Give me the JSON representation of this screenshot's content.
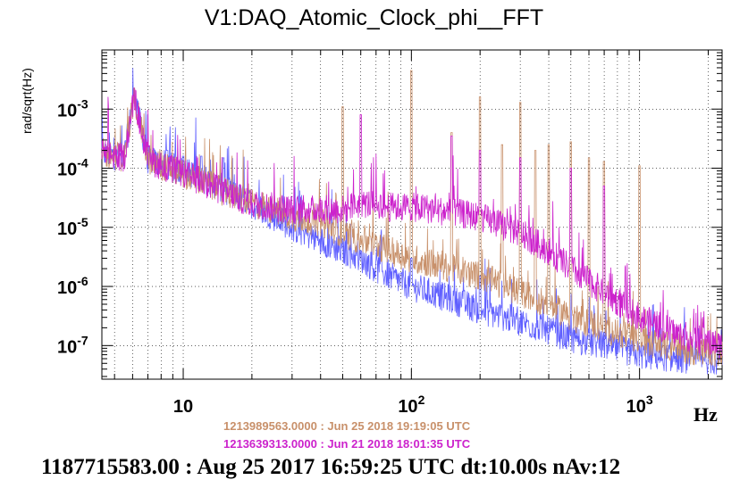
{
  "chart_data": {
    "type": "line",
    "title": "V1:DAQ_Atomic_Clock_phi__FFT",
    "ylabel": "rad/sqrt(Hz)",
    "xunit": "Hz",
    "xscale": "log",
    "yscale": "log",
    "xlim": [
      4.4,
      2300
    ],
    "ylim": [
      2.7e-08,
      0.01
    ],
    "x_tick_labels": [
      {
        "value": 10,
        "base": "10",
        "exp": ""
      },
      {
        "value": 100,
        "base": "10",
        "exp": "2"
      },
      {
        "value": 1000,
        "base": "10",
        "exp": "3"
      }
    ],
    "y_tick_labels": [
      {
        "value": 0.001,
        "base": "10",
        "exp": "-3"
      },
      {
        "value": 0.0001,
        "base": "10",
        "exp": "-4"
      },
      {
        "value": 1e-05,
        "base": "10",
        "exp": "-5"
      },
      {
        "value": 1e-06,
        "base": "10",
        "exp": "-6"
      },
      {
        "value": 1e-07,
        "base": "10",
        "exp": "-7"
      }
    ],
    "grid": true,
    "series": [
      {
        "name": "1213989563.0000 : Jun 25 2018 19:19:05 UTC",
        "color": "#c8906a",
        "x": [
          4.4,
          5.5,
          6.1,
          7,
          8,
          10,
          12,
          15,
          20,
          25,
          30,
          40,
          50,
          60,
          70,
          80,
          100,
          150,
          200,
          300,
          400,
          500,
          700,
          1000,
          1500,
          2300
        ],
        "y": [
          0.00018,
          0.00015,
          0.0016,
          0.00014,
          0.00011,
          8e-05,
          6e-05,
          4e-05,
          2.5e-05,
          2e-05,
          1.5e-05,
          1.2e-05,
          8e-06,
          6e-06,
          5e-06,
          4e-06,
          3e-06,
          2e-06,
          1.5e-06,
          8e-07,
          5e-07,
          3e-07,
          2e-07,
          1.2e-07,
          9e-08,
          7e-08
        ],
        "peaks": [
          [
            50,
            0.0011
          ],
          [
            100,
            0.0045
          ],
          [
            150,
            0.0004
          ],
          [
            200,
            0.0016
          ],
          [
            250,
            0.00025
          ],
          [
            300,
            0.0013
          ],
          [
            350,
            0.0002
          ],
          [
            400,
            0.00025
          ],
          [
            500,
            0.00028
          ],
          [
            600,
            0.00015
          ],
          [
            700,
            0.00013
          ],
          [
            1000,
            0.00011
          ]
        ]
      },
      {
        "name": "1213639313.0000 : Jun 21 2018 18:01:35 UTC",
        "color": "#cc22cc",
        "x": [
          4.4,
          5.5,
          6.1,
          7,
          8,
          10,
          12,
          15,
          20,
          25,
          30,
          40,
          50,
          60,
          70,
          80,
          100,
          150,
          200,
          300,
          400,
          500,
          700,
          1000,
          1500,
          2300
        ],
        "y": [
          0.00018,
          0.00015,
          0.0016,
          0.00014,
          0.00011,
          8e-05,
          6e-05,
          4e-05,
          2.5e-05,
          2.2e-05,
          2e-05,
          2e-05,
          2e-05,
          2.5e-05,
          2.5e-05,
          2.2e-05,
          2.2e-05,
          1.8e-05,
          1.5e-05,
          8e-06,
          4e-06,
          2e-06,
          8e-07,
          3e-07,
          1.5e-07,
          1e-07
        ],
        "peaks": [
          [
            60,
            0.0008
          ],
          [
            150,
            0.00035
          ],
          [
            200,
            0.0002
          ],
          [
            300,
            0.00015
          ],
          [
            500,
            0.0001
          ],
          [
            700,
            5e-05
          ]
        ]
      },
      {
        "name": "1187715583.00 : Aug 25 2017 16:59:25 UTC dt:10.00s nAv:12",
        "color": "#6060ff",
        "x": [
          4.4,
          5.5,
          6.1,
          7,
          8,
          10,
          12,
          15,
          20,
          25,
          30,
          40,
          50,
          60,
          70,
          80,
          100,
          150,
          200,
          300,
          400,
          500,
          700,
          1000,
          1500,
          2300
        ],
        "y": [
          0.00018,
          0.00015,
          0.0018,
          0.00014,
          0.00012,
          9e-05,
          7e-05,
          4.5e-05,
          2.5e-05,
          1.5e-05,
          1e-05,
          6e-06,
          4e-06,
          3e-06,
          2e-06,
          1.5e-06,
          1e-06,
          6e-07,
          4e-07,
          2.5e-07,
          1.8e-07,
          1.3e-07,
          1e-07,
          7e-08,
          6e-08,
          5.5e-08
        ],
        "peaks": [
          [
            8.5,
            0.0002
          ],
          [
            10,
            0.00016
          ],
          [
            12,
            0.00016
          ],
          [
            15,
            0.00015
          ],
          [
            100,
            3e-06
          ],
          [
            200,
            1.5e-06
          ]
        ]
      }
    ]
  }
}
